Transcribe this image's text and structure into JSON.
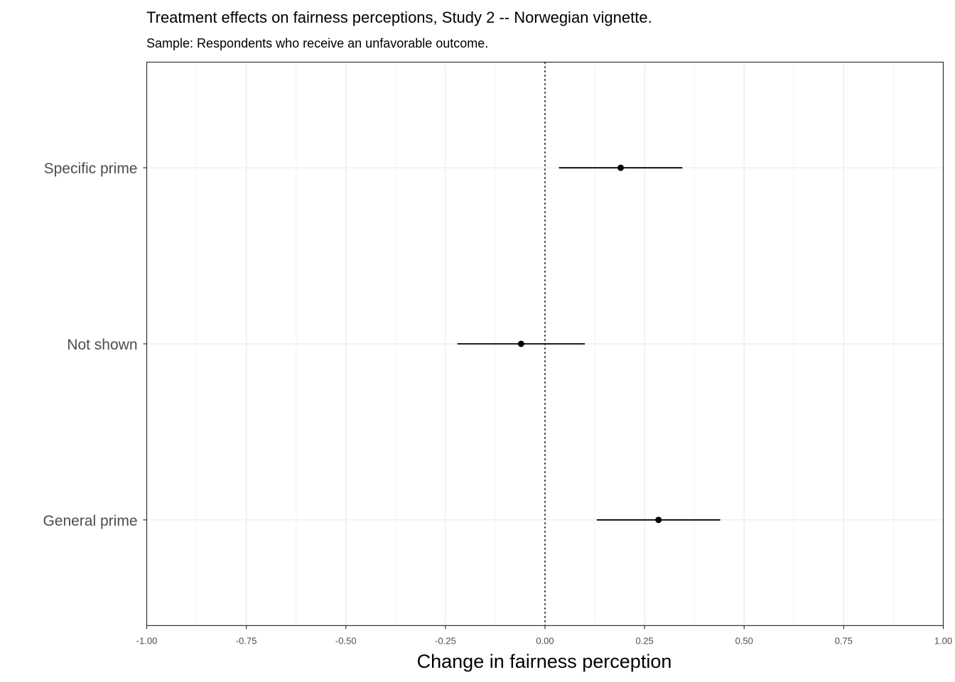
{
  "chart_data": {
    "type": "scatter",
    "subtype": "coefficient-plot with horizontal confidence intervals",
    "title": "Treatment effects on fairness perceptions, Study 2 -- Norwegian vignette.",
    "subtitle": "Sample: Respondents who receive an unfavorable outcome.",
    "xlabel": "Change in fairness perception",
    "ylabel": "",
    "xlim": [
      -1.0,
      1.0
    ],
    "x_ticks": [
      "-1.00",
      "-0.75",
      "-0.50",
      "-0.25",
      "0.00",
      "0.25",
      "0.50",
      "0.75",
      "1.00"
    ],
    "x_tick_values": [
      -1.0,
      -0.75,
      -0.5,
      -0.25,
      0.0,
      0.25,
      0.5,
      0.75,
      1.0
    ],
    "categories": [
      "Specific prime",
      "Not shown",
      "General prime"
    ],
    "estimates": [
      0.19,
      -0.06,
      0.285
    ],
    "ci_low": [
      0.035,
      -0.22,
      0.13
    ],
    "ci_high": [
      0.345,
      0.1,
      0.44
    ],
    "reference_line": 0.0,
    "grid": true,
    "legend": "none",
    "colors": {
      "point": "#000000",
      "grid": "#ebebeb",
      "axis": "#333333",
      "tick_label": "#4d4d4d"
    }
  }
}
